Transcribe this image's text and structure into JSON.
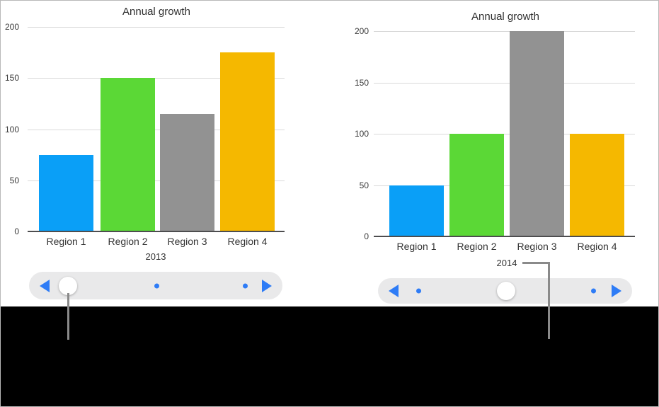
{
  "colors": {
    "bar_series": [
      "#0a9ff7",
      "#5bd836",
      "#929292",
      "#f5b800"
    ],
    "slider_accent": "#2e7cf6",
    "callout_line": "#8a8a8a",
    "gridline": "#d9d9d9",
    "axis_line": "#4d4d4f",
    "letterbox": "#000000"
  },
  "chart_data": [
    {
      "type": "bar",
      "title": "Annual growth",
      "categories": [
        "Region 1",
        "Region 2",
        "Region 3",
        "Region 4"
      ],
      "values": [
        75,
        150,
        115,
        175
      ],
      "series_label": "2013",
      "xlabel": "",
      "ylabel": "",
      "ylim": [
        0,
        200
      ],
      "yticks": [
        0,
        50,
        100,
        150,
        200
      ],
      "grid": true,
      "legend": "none",
      "bar_colors": [
        "#0a9ff7",
        "#5bd836",
        "#929292",
        "#f5b800"
      ]
    },
    {
      "type": "bar",
      "title": "Annual growth",
      "categories": [
        "Region 1",
        "Region 2",
        "Region 3",
        "Region 4"
      ],
      "values": [
        50,
        100,
        200,
        100
      ],
      "series_label": "2014",
      "xlabel": "",
      "ylabel": "",
      "ylim": [
        0,
        200
      ],
      "yticks": [
        0,
        50,
        100,
        150,
        200
      ],
      "grid": true,
      "legend": "none",
      "bar_colors": [
        "#0a9ff7",
        "#5bd836",
        "#929292",
        "#f5b800"
      ]
    }
  ],
  "sliders": [
    {
      "chart": "2013",
      "positions": 3,
      "active_position": 1,
      "left_arrow": "previous",
      "right_arrow": "next"
    },
    {
      "chart": "2014",
      "positions": 3,
      "active_position": 2,
      "left_arrow": "previous",
      "right_arrow": "next"
    }
  ]
}
